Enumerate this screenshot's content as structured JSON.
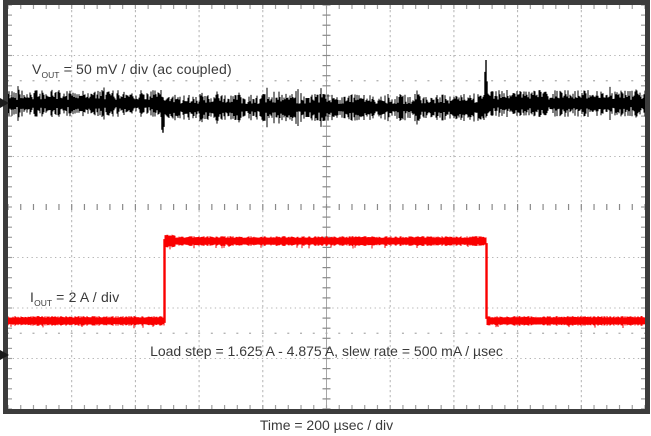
{
  "chart_data": {
    "type": "line",
    "title": "",
    "xlabel": "Time = 200 µsec / div",
    "x_axis": {
      "usec_per_div": 200,
      "divisions": 10
    },
    "y_axis": {
      "divisions": 8
    },
    "series": [
      {
        "id": "vout",
        "label": "VOUT = 50 mV / div (ac coupled)",
        "color": "#000000",
        "mv_per_div": 50,
        "coupling": "ac coupled",
        "baseline_div": 1.95,
        "droop_div": 0.08,
        "noise_halfwidth_div": [
          0.07,
          0.27
        ],
        "neg_spike": {
          "t_div": 2.433,
          "to_div": 2.53
        },
        "pos_spike": {
          "t_div": 7.504,
          "to_div": 1.09
        }
      },
      {
        "id": "iout",
        "label": "IOUT = 2 A / div",
        "color": "#fa0000",
        "a_per_div": 2,
        "low_a": 1.625,
        "high_a": 4.875,
        "slew_rate_ma_per_usec": 500,
        "low_div": 6.255,
        "high_div": 4.675,
        "band_halfwidth_div": 0.075,
        "step_up_t_div": 2.457,
        "step_down_t_div": 7.512
      }
    ],
    "markers": [
      {
        "series": "vout",
        "y_div": 1.95
      },
      {
        "series": "iout",
        "y_div": 6.93
      }
    ],
    "annotation": "Load step = 1.625 A - 4.875 A, slew rate = 500 mA / µsec"
  },
  "labels": {
    "vout_base": "V",
    "vout_sub": "OUT",
    "vout_rest": " = 50 mV / div (ac coupled)",
    "iout_base": "I",
    "iout_sub": "OUT",
    "iout_rest": " = 2 A / div",
    "annotation": "Load step = 1.625 A - 4.875 A, slew rate = 500 mA / µsec",
    "time_axis": "Time = 200 µsec / div"
  },
  "style": {
    "background": "#ffffff",
    "border_color": "#3c3c3c",
    "grid_color": "#b3b3b3",
    "center_axis_color": "#8a8a8a",
    "edge_tick_color": "#9f9f9f",
    "minor_dot_color": "#a8a8a8",
    "text_color": "#3a3a3a"
  }
}
